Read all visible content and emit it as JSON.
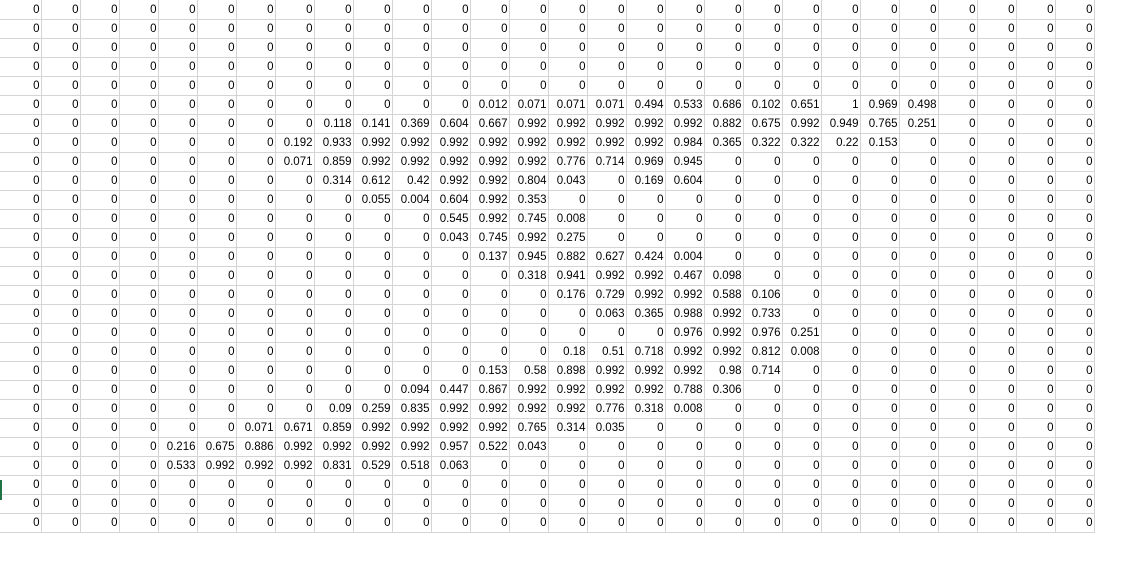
{
  "sheet": {
    "selection_color": "#217346",
    "gridline_color": "#d4d4d4",
    "rows": [
      [
        "0",
        "0",
        "0",
        "0",
        "0",
        "0",
        "0",
        "0",
        "0",
        "0",
        "0",
        "0",
        "0",
        "0",
        "0",
        "0",
        "0",
        "0",
        "0",
        "0",
        "0",
        "0",
        "0",
        "0",
        "0",
        "0",
        "0",
        "0"
      ],
      [
        "0",
        "0",
        "0",
        "0",
        "0",
        "0",
        "0",
        "0",
        "0",
        "0",
        "0",
        "0",
        "0",
        "0",
        "0",
        "0",
        "0",
        "0",
        "0",
        "0",
        "0",
        "0",
        "0",
        "0",
        "0",
        "0",
        "0",
        "0"
      ],
      [
        "0",
        "0",
        "0",
        "0",
        "0",
        "0",
        "0",
        "0",
        "0",
        "0",
        "0",
        "0",
        "0",
        "0",
        "0",
        "0",
        "0",
        "0",
        "0",
        "0",
        "0",
        "0",
        "0",
        "0",
        "0",
        "0",
        "0",
        "0"
      ],
      [
        "0",
        "0",
        "0",
        "0",
        "0",
        "0",
        "0",
        "0",
        "0",
        "0",
        "0",
        "0",
        "0",
        "0",
        "0",
        "0",
        "0",
        "0",
        "0",
        "0",
        "0",
        "0",
        "0",
        "0",
        "0",
        "0",
        "0",
        "0"
      ],
      [
        "0",
        "0",
        "0",
        "0",
        "0",
        "0",
        "0",
        "0",
        "0",
        "0",
        "0",
        "0",
        "0",
        "0",
        "0",
        "0",
        "0",
        "0",
        "0",
        "0",
        "0",
        "0",
        "0",
        "0",
        "0",
        "0",
        "0",
        "0"
      ],
      [
        "0",
        "0",
        "0",
        "0",
        "0",
        "0",
        "0",
        "0",
        "0",
        "0",
        "0",
        "0",
        "0.012",
        "0.071",
        "0.071",
        "0.071",
        "0.494",
        "0.533",
        "0.686",
        "0.102",
        "0.651",
        "1",
        "0.969",
        "0.498",
        "0",
        "0",
        "0",
        "0"
      ],
      [
        "0",
        "0",
        "0",
        "0",
        "0",
        "0",
        "0",
        "0",
        "0.118",
        "0.141",
        "0.369",
        "0.604",
        "0.667",
        "0.992",
        "0.992",
        "0.992",
        "0.992",
        "0.992",
        "0.882",
        "0.675",
        "0.992",
        "0.949",
        "0.765",
        "0.251",
        "0",
        "0",
        "0",
        "0"
      ],
      [
        "0",
        "0",
        "0",
        "0",
        "0",
        "0",
        "0",
        "0.192",
        "0.933",
        "0.992",
        "0.992",
        "0.992",
        "0.992",
        "0.992",
        "0.992",
        "0.992",
        "0.992",
        "0.984",
        "0.365",
        "0.322",
        "0.322",
        "0.22",
        "0.153",
        "0",
        "0",
        "0",
        "0",
        "0"
      ],
      [
        "0",
        "0",
        "0",
        "0",
        "0",
        "0",
        "0",
        "0.071",
        "0.859",
        "0.992",
        "0.992",
        "0.992",
        "0.992",
        "0.992",
        "0.776",
        "0.714",
        "0.969",
        "0.945",
        "0",
        "0",
        "0",
        "0",
        "0",
        "0",
        "0",
        "0",
        "0",
        "0"
      ],
      [
        "0",
        "0",
        "0",
        "0",
        "0",
        "0",
        "0",
        "0",
        "0.314",
        "0.612",
        "0.42",
        "0.992",
        "0.992",
        "0.804",
        "0.043",
        "0",
        "0.169",
        "0.604",
        "0",
        "0",
        "0",
        "0",
        "0",
        "0",
        "0",
        "0",
        "0",
        "0"
      ],
      [
        "0",
        "0",
        "0",
        "0",
        "0",
        "0",
        "0",
        "0",
        "0",
        "0.055",
        "0.004",
        "0.604",
        "0.992",
        "0.353",
        "0",
        "0",
        "0",
        "0",
        "0",
        "0",
        "0",
        "0",
        "0",
        "0",
        "0",
        "0",
        "0",
        "0"
      ],
      [
        "0",
        "0",
        "0",
        "0",
        "0",
        "0",
        "0",
        "0",
        "0",
        "0",
        "0",
        "0.545",
        "0.992",
        "0.745",
        "0.008",
        "0",
        "0",
        "0",
        "0",
        "0",
        "0",
        "0",
        "0",
        "0",
        "0",
        "0",
        "0",
        "0"
      ],
      [
        "0",
        "0",
        "0",
        "0",
        "0",
        "0",
        "0",
        "0",
        "0",
        "0",
        "0",
        "0.043",
        "0.745",
        "0.992",
        "0.275",
        "0",
        "0",
        "0",
        "0",
        "0",
        "0",
        "0",
        "0",
        "0",
        "0",
        "0",
        "0",
        "0"
      ],
      [
        "0",
        "0",
        "0",
        "0",
        "0",
        "0",
        "0",
        "0",
        "0",
        "0",
        "0",
        "0",
        "0.137",
        "0.945",
        "0.882",
        "0.627",
        "0.424",
        "0.004",
        "0",
        "0",
        "0",
        "0",
        "0",
        "0",
        "0",
        "0",
        "0",
        "0"
      ],
      [
        "0",
        "0",
        "0",
        "0",
        "0",
        "0",
        "0",
        "0",
        "0",
        "0",
        "0",
        "0",
        "0",
        "0.318",
        "0.941",
        "0.992",
        "0.992",
        "0.467",
        "0.098",
        "0",
        "0",
        "0",
        "0",
        "0",
        "0",
        "0",
        "0",
        "0"
      ],
      [
        "0",
        "0",
        "0",
        "0",
        "0",
        "0",
        "0",
        "0",
        "0",
        "0",
        "0",
        "0",
        "0",
        "0",
        "0.176",
        "0.729",
        "0.992",
        "0.992",
        "0.588",
        "0.106",
        "0",
        "0",
        "0",
        "0",
        "0",
        "0",
        "0",
        "0"
      ],
      [
        "0",
        "0",
        "0",
        "0",
        "0",
        "0",
        "0",
        "0",
        "0",
        "0",
        "0",
        "0",
        "0",
        "0",
        "0",
        "0.063",
        "0.365",
        "0.988",
        "0.992",
        "0.733",
        "0",
        "0",
        "0",
        "0",
        "0",
        "0",
        "0",
        "0"
      ],
      [
        "0",
        "0",
        "0",
        "0",
        "0",
        "0",
        "0",
        "0",
        "0",
        "0",
        "0",
        "0",
        "0",
        "0",
        "0",
        "0",
        "0",
        "0.976",
        "0.992",
        "0.976",
        "0.251",
        "0",
        "0",
        "0",
        "0",
        "0",
        "0",
        "0"
      ],
      [
        "0",
        "0",
        "0",
        "0",
        "0",
        "0",
        "0",
        "0",
        "0",
        "0",
        "0",
        "0",
        "0",
        "0",
        "0.18",
        "0.51",
        "0.718",
        "0.992",
        "0.992",
        "0.812",
        "0.008",
        "0",
        "0",
        "0",
        "0",
        "0",
        "0",
        "0"
      ],
      [
        "0",
        "0",
        "0",
        "0",
        "0",
        "0",
        "0",
        "0",
        "0",
        "0",
        "0",
        "0",
        "0.153",
        "0.58",
        "0.898",
        "0.992",
        "0.992",
        "0.992",
        "0.98",
        "0.714",
        "0",
        "0",
        "0",
        "0",
        "0",
        "0",
        "0",
        "0"
      ],
      [
        "0",
        "0",
        "0",
        "0",
        "0",
        "0",
        "0",
        "0",
        "0",
        "0",
        "0.094",
        "0.447",
        "0.867",
        "0.992",
        "0.992",
        "0.992",
        "0.992",
        "0.788",
        "0.306",
        "0",
        "0",
        "0",
        "0",
        "0",
        "0",
        "0",
        "0",
        "0"
      ],
      [
        "0",
        "0",
        "0",
        "0",
        "0",
        "0",
        "0",
        "0",
        "0.09",
        "0.259",
        "0.835",
        "0.992",
        "0.992",
        "0.992",
        "0.992",
        "0.776",
        "0.318",
        "0.008",
        "0",
        "0",
        "0",
        "0",
        "0",
        "0",
        "0",
        "0",
        "0",
        "0"
      ],
      [
        "0",
        "0",
        "0",
        "0",
        "0",
        "0",
        "0.071",
        "0.671",
        "0.859",
        "0.992",
        "0.992",
        "0.992",
        "0.992",
        "0.765",
        "0.314",
        "0.035",
        "0",
        "0",
        "0",
        "0",
        "0",
        "0",
        "0",
        "0",
        "0",
        "0",
        "0",
        "0"
      ],
      [
        "0",
        "0",
        "0",
        "0",
        "0.216",
        "0.675",
        "0.886",
        "0.992",
        "0.992",
        "0.992",
        "0.992",
        "0.957",
        "0.522",
        "0.043",
        "0",
        "0",
        "0",
        "0",
        "0",
        "0",
        "0",
        "0",
        "0",
        "0",
        "0",
        "0",
        "0",
        "0"
      ],
      [
        "0",
        "0",
        "0",
        "0",
        "0.533",
        "0.992",
        "0.992",
        "0.992",
        "0.831",
        "0.529",
        "0.518",
        "0.063",
        "0",
        "0",
        "0",
        "0",
        "0",
        "0",
        "0",
        "0",
        "0",
        "0",
        "0",
        "0",
        "0",
        "0",
        "0",
        "0"
      ],
      [
        "0",
        "0",
        "0",
        "0",
        "0",
        "0",
        "0",
        "0",
        "0",
        "0",
        "0",
        "0",
        "0",
        "0",
        "0",
        "0",
        "0",
        "0",
        "0",
        "0",
        "0",
        "0",
        "0",
        "0",
        "0",
        "0",
        "0",
        "0"
      ],
      [
        "0",
        "0",
        "0",
        "0",
        "0",
        "0",
        "0",
        "0",
        "0",
        "0",
        "0",
        "0",
        "0",
        "0",
        "0",
        "0",
        "0",
        "0",
        "0",
        "0",
        "0",
        "0",
        "0",
        "0",
        "0",
        "0",
        "0",
        "0"
      ],
      [
        "0",
        "0",
        "0",
        "0",
        "0",
        "0",
        "0",
        "0",
        "0",
        "0",
        "0",
        "0",
        "0",
        "0",
        "0",
        "0",
        "0",
        "0",
        "0",
        "0",
        "0",
        "0",
        "0",
        "0",
        "0",
        "0",
        "0",
        "0"
      ]
    ]
  }
}
